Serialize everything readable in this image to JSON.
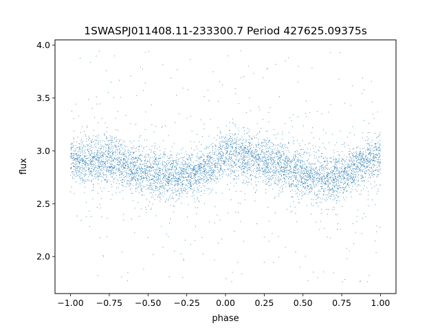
{
  "chart_data": {
    "type": "scatter",
    "title": "1SWASPJ011408.11-233300.7 Period 427625.09375s",
    "xlabel": "phase",
    "ylabel": "flux",
    "xlim": [
      -1.1,
      1.1
    ],
    "ylim": [
      1.65,
      4.05
    ],
    "x_ticks": [
      -1.0,
      -0.75,
      -0.5,
      -0.25,
      0.0,
      0.25,
      0.5,
      0.75,
      1.0
    ],
    "x_tick_labels": [
      "−1.00",
      "−0.75",
      "−0.50",
      "−0.25",
      "0.00",
      "0.25",
      "0.50",
      "0.75",
      "1.00"
    ],
    "y_ticks": [
      2.0,
      2.5,
      3.0,
      3.5,
      4.0
    ],
    "y_tick_labels": [
      "2.0",
      "2.5",
      "3.0",
      "3.5",
      "4.0"
    ],
    "grid": false,
    "legend": "none",
    "marker_color": "#1f77b4",
    "series": [
      {
        "x_range": [
          -1.0,
          1.0
        ],
        "profile_phase": [
          -1.0,
          -0.9,
          -0.75,
          -0.6,
          -0.5,
          -0.4,
          -0.3,
          -0.2,
          -0.1,
          0.0,
          0.1,
          0.25,
          0.4,
          0.5,
          0.6,
          0.7,
          0.8,
          0.9,
          1.0
        ],
        "profile_median_flux": [
          2.92,
          2.9,
          2.92,
          2.85,
          2.78,
          2.78,
          2.75,
          2.78,
          2.85,
          2.98,
          2.95,
          2.9,
          2.85,
          2.78,
          2.75,
          2.75,
          2.8,
          2.9,
          2.95
        ],
        "core_scatter_sigma": 0.11,
        "outlier_flux_range": [
          1.75,
          3.95
        ]
      }
    ]
  }
}
